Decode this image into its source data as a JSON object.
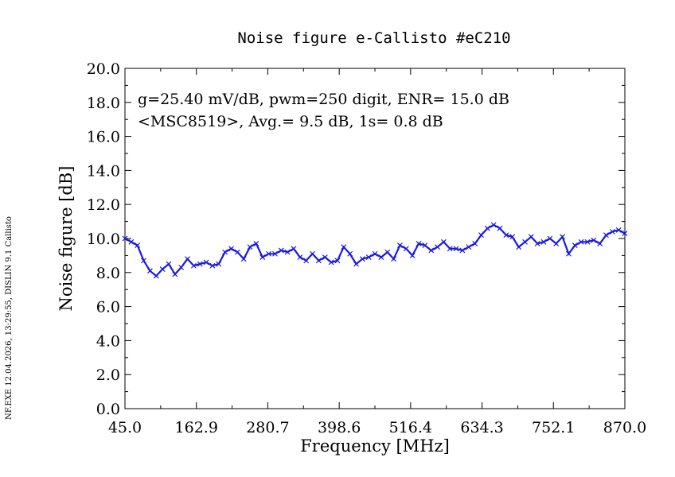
{
  "chart_data": {
    "type": "line",
    "title": "Noise figure e-Callisto #eC210",
    "xlabel": "Frequency [MHz]",
    "ylabel": "Noise figure [dB]",
    "xlim": [
      45.0,
      870.0
    ],
    "ylim": [
      0.0,
      20.0
    ],
    "x_ticks": [
      "45.0",
      "162.9",
      "280.7",
      "398.6",
      "516.4",
      "634.3",
      "752.1",
      "870.0"
    ],
    "y_ticks": [
      "0.0",
      "2.0",
      "4.0",
      "6.0",
      "8.0",
      "10.0",
      "12.0",
      "14.0",
      "16.0",
      "18.0",
      "20.0"
    ],
    "annotations": [
      "g=25.40 mV/dB, pwm=250 digit, ENR= 15.0 dB",
      "<MSC8519>, Avg.= 9.5 dB, 1s= 0.8 dB"
    ],
    "side_note": "NF.EXE 12.04.2026, 13:29:55, DISLIN 9.1 Callisto",
    "grid": false,
    "line_color": "#1a1ae0",
    "series": [
      {
        "x": [
          45.0,
          55.3,
          65.6,
          75.9,
          86.3,
          96.6,
          106.9,
          117.2,
          127.5,
          137.8,
          148.1,
          158.5,
          168.8,
          179.1,
          189.4,
          199.7,
          210.0,
          220.4,
          230.7,
          241.0,
          251.3,
          261.6,
          271.9,
          282.2,
          292.6,
          302.9,
          313.2,
          323.5,
          333.8,
          344.1,
          354.4,
          364.7,
          375.1,
          385.4,
          395.7,
          406.0,
          416.3,
          426.6,
          436.9,
          447.2,
          457.6,
          467.9,
          478.2,
          488.5,
          498.8,
          509.1,
          519.4,
          529.8,
          540.1,
          550.4,
          560.7,
          571.0,
          581.3,
          591.6,
          601.9,
          612.3,
          622.6,
          632.9,
          643.2,
          653.5,
          663.8,
          674.1,
          684.4,
          694.8,
          705.1,
          715.4,
          725.7,
          736.0,
          746.3,
          756.6,
          767.0,
          777.3,
          787.6,
          797.9,
          808.2,
          818.5,
          828.8,
          839.1,
          849.5,
          859.8,
          870.0
        ],
        "y": [
          10.0,
          9.8,
          9.6,
          8.7,
          8.1,
          7.8,
          8.2,
          8.5,
          7.9,
          8.3,
          8.8,
          8.4,
          8.5,
          8.6,
          8.4,
          8.5,
          9.2,
          9.4,
          9.2,
          8.8,
          9.5,
          9.7,
          8.9,
          9.1,
          9.1,
          9.3,
          9.2,
          9.4,
          8.9,
          8.7,
          9.1,
          8.7,
          8.9,
          8.6,
          8.7,
          9.5,
          9.1,
          8.5,
          8.8,
          8.9,
          9.1,
          8.9,
          9.2,
          8.8,
          9.6,
          9.4,
          9.0,
          9.7,
          9.6,
          9.3,
          9.5,
          9.8,
          9.4,
          9.4,
          9.3,
          9.5,
          9.7,
          10.2,
          10.6,
          10.8,
          10.6,
          10.2,
          10.1,
          9.5,
          9.8,
          10.1,
          9.7,
          9.8,
          10.0,
          9.7,
          10.1,
          9.1,
          9.6,
          9.8,
          9.8,
          9.9,
          9.7,
          10.2,
          10.4,
          10.5,
          10.3
        ]
      }
    ]
  }
}
